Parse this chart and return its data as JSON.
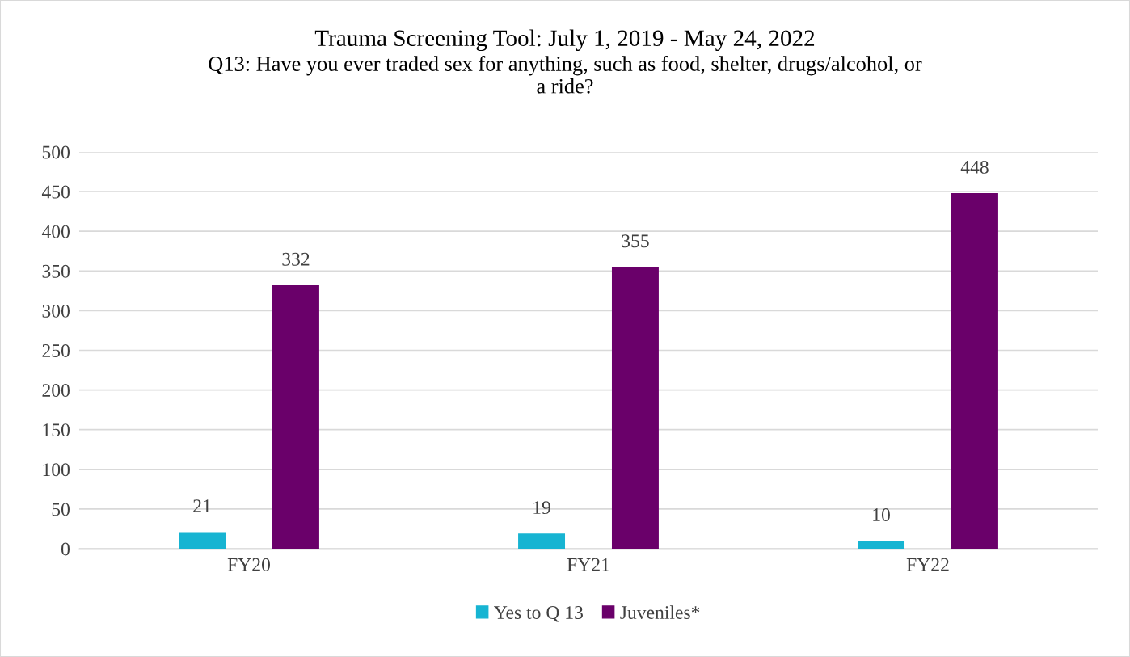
{
  "chart_data": {
    "type": "bar",
    "title": "Trauma Screening Tool: July 1, 2019 - May 24, 2022",
    "subtitle": "Q13: Have you ever traded sex for anything, such as food, shelter, drugs/alcohol, or\na ride?",
    "categories": [
      "FY20",
      "FY21",
      "FY22"
    ],
    "series": [
      {
        "name": "Yes to Q 13",
        "color": "#17b4d2",
        "values": [
          21,
          19,
          10
        ]
      },
      {
        "name": "Juveniles*",
        "color": "#6a006a",
        "values": [
          332,
          355,
          448
        ]
      }
    ],
    "ylim": [
      0,
      500
    ],
    "yticks": [
      0,
      50,
      100,
      150,
      200,
      250,
      300,
      350,
      400,
      450,
      500
    ],
    "grid": "y",
    "legend": "bottom",
    "data_labels": true
  }
}
